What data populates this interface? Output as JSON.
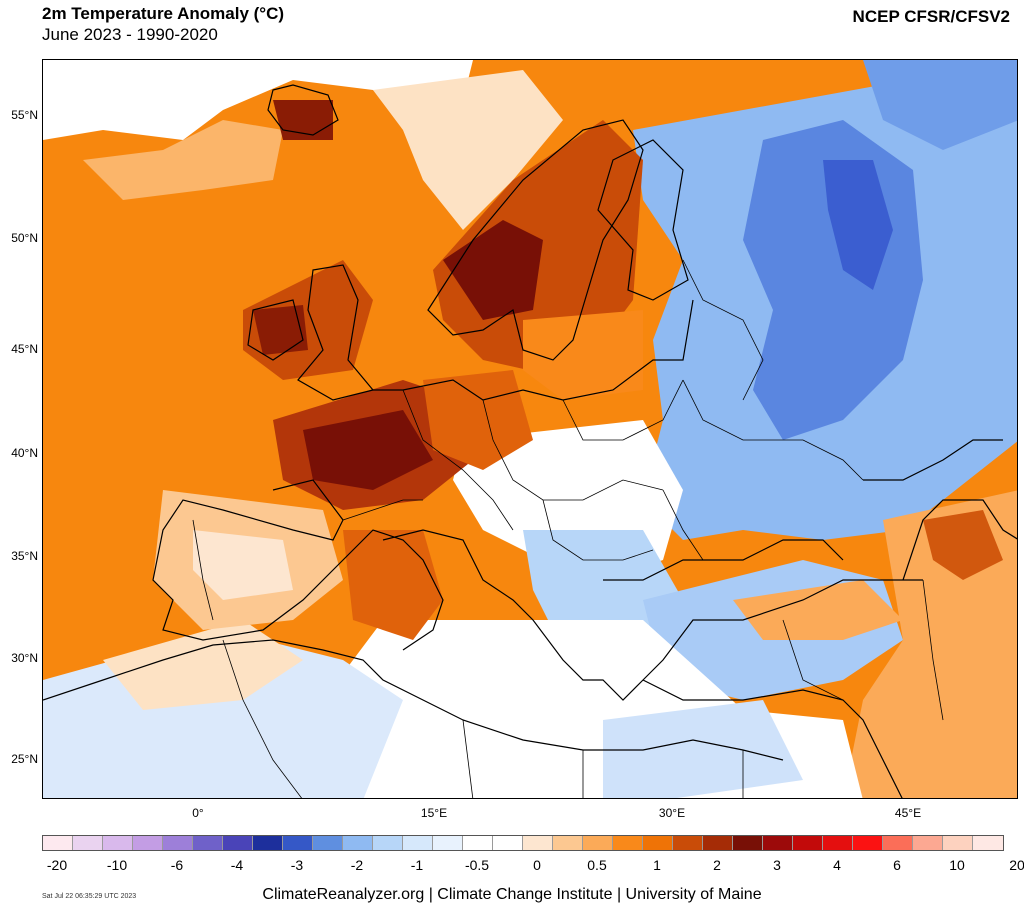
{
  "header": {
    "title": "2m Temperature Anomaly (°C)",
    "subtitle": "June 2023 - 1990-2020",
    "source": "NCEP CFSR/CFSV2"
  },
  "map": {
    "lat_labels": [
      "55°N",
      "50°N",
      "45°N",
      "40°N",
      "35°N",
      "30°N",
      "25°N"
    ],
    "lon_labels": [
      "0°",
      "15°E",
      "30°E",
      "45°E"
    ],
    "regions": [
      {
        "name": "atlantic-warm-anomaly",
        "color": "#f77f0a"
      },
      {
        "name": "western-europe-hot-core",
        "color": "#8a1c05"
      },
      {
        "name": "scandinavia-hot-core",
        "color": "#8a1c05"
      },
      {
        "name": "eastern-europe-cool-anomaly",
        "color": "#6aa6f0"
      },
      {
        "name": "russia-cold-core",
        "color": "#3b5ed0"
      },
      {
        "name": "mediterranean-neutral",
        "color": "#ffffff"
      }
    ]
  },
  "colorbar": {
    "labels": [
      "-20",
      "-10",
      "-6",
      "-4",
      "-3",
      "-2",
      "-1",
      "-0.5",
      "0",
      "0.5",
      "1",
      "2",
      "3",
      "4",
      "6",
      "10",
      "20"
    ],
    "colors": [
      "#fde9ef",
      "#ead3f0",
      "#d9b9ec",
      "#c39de4",
      "#9d7fd9",
      "#6f61c9",
      "#4a44b8",
      "#1d2f9c",
      "#3558c7",
      "#5f8fe0",
      "#8fbaf2",
      "#b7d6f8",
      "#d6e8fb",
      "#e8f2fd",
      "#ffffff",
      "#ffffff",
      "#fde6d0",
      "#fcc891",
      "#fbaa58",
      "#f9891a",
      "#ef7306",
      "#c94c08",
      "#a52c06",
      "#781006",
      "#9c0a0a",
      "#c20a0a",
      "#e40f0f",
      "#fb1212",
      "#fb6e58",
      "#fca892",
      "#fdd2bf",
      "#fee8e4"
    ]
  },
  "footer": {
    "credit": "ClimateReanalyzer.org | Climate Change Institute | University of Maine",
    "timestamp": "Sat Jul 22 06:35:29 UTC 2023"
  }
}
